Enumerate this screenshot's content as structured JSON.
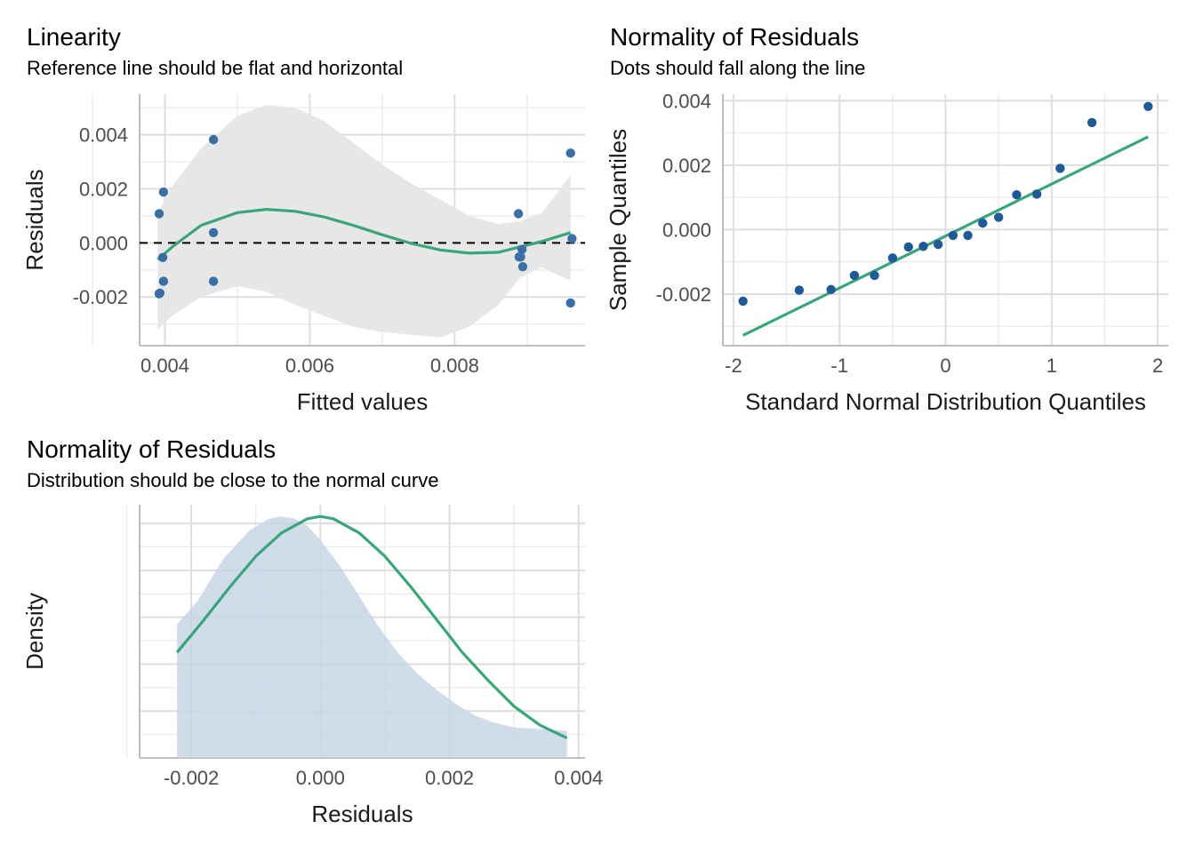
{
  "chart_data": [
    {
      "type": "scatter",
      "title": "Linearity",
      "subtitle": "Reference line should be flat and horizontal",
      "xlabel": "Fitted values",
      "ylabel": "Residuals",
      "xlim": [
        0.00365,
        0.0098
      ],
      "ylim": [
        -0.0038,
        0.0055
      ],
      "x_ticks": [
        0.004,
        0.006,
        0.008
      ],
      "x_tick_labels": [
        "0.004",
        "0.006",
        "0.008"
      ],
      "y_ticks": [
        -0.002,
        0.0,
        0.002,
        0.004
      ],
      "y_tick_labels": [
        "-0.002",
        "0.000",
        "0.002",
        "0.004"
      ],
      "grid": true,
      "point_color": "#3a6ea5",
      "line_color": "#3aa57a",
      "band_color": "#e6e6e6",
      "reference_line": 0.0,
      "points": [
        {
          "x": 0.00392,
          "y": 0.00108
        },
        {
          "x": 0.00398,
          "y": 0.00188
        },
        {
          "x": 0.00393,
          "y": -0.00186
        },
        {
          "x": 0.00392,
          "y": -0.00188
        },
        {
          "x": 0.00398,
          "y": -0.00142
        },
        {
          "x": 0.00397,
          "y": -0.00054
        },
        {
          "x": 0.00467,
          "y": 0.00382
        },
        {
          "x": 0.00467,
          "y": 0.00038
        },
        {
          "x": 0.00467,
          "y": -0.00142
        },
        {
          "x": 0.00888,
          "y": 0.00108
        },
        {
          "x": 0.00891,
          "y": -0.00052
        },
        {
          "x": 0.00889,
          "y": -0.00052
        },
        {
          "x": 0.00893,
          "y": -0.00024
        },
        {
          "x": 0.00894,
          "y": -0.00088
        },
        {
          "x": 0.0096,
          "y": 0.00332
        },
        {
          "x": 0.00962,
          "y": 0.00016
        },
        {
          "x": 0.0096,
          "y": -0.00222
        }
      ],
      "smooth": {
        "x": [
          0.0039,
          0.0041,
          0.0045,
          0.005,
          0.0054,
          0.0058,
          0.0062,
          0.0066,
          0.007,
          0.0074,
          0.0078,
          0.0082,
          0.0086,
          0.0089,
          0.0092,
          0.0096
        ],
        "y": [
          -0.00062,
          -0.00015,
          0.00065,
          0.00112,
          0.00124,
          0.00117,
          0.00096,
          0.00065,
          0.0003,
          -2e-05,
          -0.00026,
          -0.00038,
          -0.00035,
          -0.00015,
          5e-05,
          0.00038
        ],
        "lower": [
          -0.0032,
          -0.0027,
          -0.002,
          -0.0016,
          -0.0018,
          -0.0023,
          -0.0027,
          -0.0031,
          -0.0033,
          -0.0034,
          -0.0035,
          -0.0031,
          -0.0023,
          -0.0013,
          -0.0009,
          -0.0014
        ],
        "upper": [
          0.0011,
          0.0021,
          0.0035,
          0.0047,
          0.0051,
          0.005,
          0.0045,
          0.0037,
          0.0029,
          0.0022,
          0.0016,
          0.001,
          0.0007,
          0.0008,
          0.0011,
          0.0025
        ]
      }
    },
    {
      "type": "scatter",
      "title": "Normality of Residuals",
      "subtitle": "Dots should fall along the line",
      "xlabel": "Standard Normal Distribution Quantiles",
      "ylabel": "Sample Quantiles",
      "xlim": [
        -2.1,
        2.1
      ],
      "ylim": [
        -0.0036,
        0.0042
      ],
      "x_ticks": [
        -2,
        -1,
        0,
        1,
        2
      ],
      "x_tick_labels": [
        "-2",
        "-1",
        "0",
        "1",
        "2"
      ],
      "y_ticks": [
        -0.002,
        0.0,
        0.002,
        0.004
      ],
      "y_tick_labels": [
        "-0.002",
        "0.000",
        "0.002",
        "0.004"
      ],
      "grid": true,
      "point_color": "#1f5a96",
      "line_color": "#3aa57a",
      "points": [
        {
          "x": -1.91,
          "y": -0.00222
        },
        {
          "x": -1.38,
          "y": -0.00188
        },
        {
          "x": -1.08,
          "y": -0.00186
        },
        {
          "x": -0.86,
          "y": -0.00142
        },
        {
          "x": -0.67,
          "y": -0.00142
        },
        {
          "x": -0.5,
          "y": -0.00088
        },
        {
          "x": -0.35,
          "y": -0.00054
        },
        {
          "x": -0.21,
          "y": -0.00052
        },
        {
          "x": -0.07,
          "y": -0.00046
        },
        {
          "x": 0.07,
          "y": -0.00018
        },
        {
          "x": 0.21,
          "y": -0.00018
        },
        {
          "x": 0.35,
          "y": 0.0002
        },
        {
          "x": 0.5,
          "y": 0.00038
        },
        {
          "x": 0.67,
          "y": 0.00108
        },
        {
          "x": 0.86,
          "y": 0.0011
        },
        {
          "x": 1.08,
          "y": 0.0019
        },
        {
          "x": 1.38,
          "y": 0.00332
        },
        {
          "x": 1.91,
          "y": 0.00382
        }
      ],
      "reference_line": {
        "x": [
          -1.91,
          1.91
        ],
        "y": [
          -0.00328,
          0.00288
        ]
      }
    },
    {
      "type": "area",
      "title": "Normality of Residuals",
      "subtitle": "Distribution should be close to the normal curve",
      "xlabel": "Residuals",
      "ylabel": "Density",
      "xlim": [
        -0.0028,
        0.0041
      ],
      "ylim": [
        0,
        1.08
      ],
      "x_ticks": [
        -0.002,
        0.0,
        0.002,
        0.004
      ],
      "x_tick_labels": [
        "-0.002",
        "0.000",
        "0.002",
        "0.004"
      ],
      "grid": true,
      "area_color": "#c5d3e6",
      "curve_color": "#3aa57a",
      "density": {
        "x": [
          -0.00222,
          -0.0019,
          -0.0015,
          -0.0011,
          -0.0008,
          -0.0006,
          -0.0004,
          -0.0002,
          0.0,
          0.0003,
          0.0006,
          0.0009,
          0.0012,
          0.0015,
          0.0018,
          0.0021,
          0.0024,
          0.0027,
          0.003,
          0.0033,
          0.0036,
          0.00382
        ],
        "y": [
          0.57,
          0.67,
          0.85,
          0.97,
          1.02,
          1.03,
          1.02,
          0.99,
          0.93,
          0.82,
          0.69,
          0.56,
          0.45,
          0.36,
          0.29,
          0.23,
          0.18,
          0.15,
          0.13,
          0.125,
          0.12,
          0.115
        ]
      },
      "normal_curve": {
        "x": [
          -0.00222,
          -0.0018,
          -0.0014,
          -0.001,
          -0.0006,
          -0.0002,
          0.0,
          0.0002,
          0.0006,
          0.001,
          0.0014,
          0.0018,
          0.0022,
          0.0026,
          0.003,
          0.0034,
          0.00382
        ],
        "y": [
          0.45,
          0.59,
          0.73,
          0.86,
          0.96,
          1.02,
          1.03,
          1.02,
          0.96,
          0.86,
          0.73,
          0.59,
          0.45,
          0.33,
          0.22,
          0.14,
          0.085
        ]
      }
    }
  ]
}
